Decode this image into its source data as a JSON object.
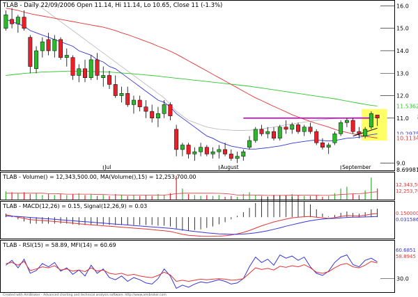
{
  "header": {
    "title": "TLAB - Daily 22/09/2006 Open 11.14, Hi 11.14, Lo 10.65, Close 11 (-1.3%)"
  },
  "colors": {
    "up": "#2db82d",
    "down": "#e8202a",
    "ma_fast": "#3434d8",
    "ma_mid": "#e33434",
    "ma_slow": "#2fc62f",
    "ma_grey": "#bdbdbd",
    "resistance": "#cc00cc",
    "highlight": "#ffff66",
    "axis_label_bg": "#ffffff"
  },
  "chart_data": [
    {
      "type": "candlestick",
      "name": "price",
      "ylim": [
        8.7,
        16.2
      ],
      "y_ticks": [
        "16.0",
        "15.0",
        "14.0",
        "13.0",
        "12.0",
        "11.0",
        "9.0"
      ],
      "x_labels": [
        "Jul",
        "August",
        "September"
      ],
      "x_label_index": [
        16,
        35,
        55
      ],
      "price_labels": [
        {
          "value": 11.5362,
          "text": "11.5362",
          "color": "#2fc62f"
        },
        {
          "value": 11.0397,
          "text": "11.0397",
          "color": "#9a9a9a"
        },
        {
          "value": 11.0,
          "text": "11.0",
          "color": "#000000"
        },
        {
          "value": 10.2975,
          "text": "10.2975",
          "color": "#3434d8"
        },
        {
          "value": 10.1134,
          "text": "10.1134",
          "color": "#e33434"
        },
        {
          "value": 8.69981,
          "text": "8.69981",
          "color": "#000000"
        }
      ],
      "candles": [
        {
          "o": 15.0,
          "h": 15.8,
          "l": 14.9,
          "c": 15.6
        },
        {
          "o": 15.4,
          "h": 15.9,
          "l": 15.0,
          "c": 15.2
        },
        {
          "o": 15.2,
          "h": 15.6,
          "l": 14.8,
          "c": 15.5
        },
        {
          "o": 15.5,
          "h": 15.8,
          "l": 14.9,
          "c": 15.0
        },
        {
          "o": 14.6,
          "h": 14.7,
          "l": 13.0,
          "c": 13.3
        },
        {
          "o": 13.2,
          "h": 14.2,
          "l": 13.0,
          "c": 14.0
        },
        {
          "o": 14.0,
          "h": 14.6,
          "l": 13.7,
          "c": 14.4
        },
        {
          "o": 14.5,
          "h": 14.8,
          "l": 13.8,
          "c": 14.0
        },
        {
          "o": 14.0,
          "h": 14.7,
          "l": 13.7,
          "c": 14.5
        },
        {
          "o": 14.5,
          "h": 14.6,
          "l": 13.6,
          "c": 13.7
        },
        {
          "o": 13.7,
          "h": 14.1,
          "l": 13.3,
          "c": 13.8
        },
        {
          "o": 13.7,
          "h": 13.8,
          "l": 12.7,
          "c": 12.9
        },
        {
          "o": 12.9,
          "h": 13.4,
          "l": 12.6,
          "c": 13.2
        },
        {
          "o": 13.2,
          "h": 13.6,
          "l": 12.6,
          "c": 12.8
        },
        {
          "o": 12.8,
          "h": 13.8,
          "l": 12.7,
          "c": 13.6
        },
        {
          "o": 13.6,
          "h": 13.9,
          "l": 12.7,
          "c": 12.9
        },
        {
          "o": 12.8,
          "h": 13.3,
          "l": 12.4,
          "c": 12.9
        },
        {
          "o": 12.9,
          "h": 13.1,
          "l": 12.3,
          "c": 12.5
        },
        {
          "o": 12.5,
          "h": 12.9,
          "l": 11.9,
          "c": 12.0
        },
        {
          "o": 12.0,
          "h": 12.4,
          "l": 11.7,
          "c": 12.1
        },
        {
          "o": 12.1,
          "h": 12.4,
          "l": 11.5,
          "c": 11.6
        },
        {
          "o": 11.6,
          "h": 12.0,
          "l": 11.2,
          "c": 11.8
        },
        {
          "o": 11.8,
          "h": 12.0,
          "l": 11.3,
          "c": 11.5
        },
        {
          "o": 11.5,
          "h": 11.8,
          "l": 11.0,
          "c": 11.3
        },
        {
          "o": 11.3,
          "h": 11.6,
          "l": 10.8,
          "c": 11.0
        },
        {
          "o": 11.0,
          "h": 11.5,
          "l": 10.6,
          "c": 11.2
        },
        {
          "o": 11.2,
          "h": 11.8,
          "l": 11.0,
          "c": 11.6
        },
        {
          "o": 11.6,
          "h": 11.7,
          "l": 10.9,
          "c": 11.1
        },
        {
          "o": 10.5,
          "h": 10.7,
          "l": 9.3,
          "c": 9.6
        },
        {
          "o": 9.6,
          "h": 9.9,
          "l": 9.3,
          "c": 9.8
        },
        {
          "o": 9.8,
          "h": 9.9,
          "l": 9.2,
          "c": 9.4
        },
        {
          "o": 9.4,
          "h": 9.7,
          "l": 9.1,
          "c": 9.5
        },
        {
          "o": 9.5,
          "h": 9.9,
          "l": 9.3,
          "c": 9.7
        },
        {
          "o": 9.7,
          "h": 9.8,
          "l": 9.3,
          "c": 9.4
        },
        {
          "o": 9.4,
          "h": 9.7,
          "l": 9.2,
          "c": 9.5
        },
        {
          "o": 9.5,
          "h": 9.8,
          "l": 9.2,
          "c": 9.6
        },
        {
          "o": 9.6,
          "h": 9.9,
          "l": 9.3,
          "c": 9.4
        },
        {
          "o": 9.4,
          "h": 9.6,
          "l": 9.1,
          "c": 9.2
        },
        {
          "o": 9.2,
          "h": 9.5,
          "l": 9.0,
          "c": 9.3
        },
        {
          "o": 9.3,
          "h": 9.6,
          "l": 9.1,
          "c": 9.5
        },
        {
          "o": 9.7,
          "h": 10.2,
          "l": 9.6,
          "c": 10.0
        },
        {
          "o": 10.0,
          "h": 10.6,
          "l": 9.9,
          "c": 10.5
        },
        {
          "o": 10.5,
          "h": 10.7,
          "l": 10.2,
          "c": 10.3
        },
        {
          "o": 10.3,
          "h": 10.6,
          "l": 10.1,
          "c": 10.4
        },
        {
          "o": 10.4,
          "h": 10.6,
          "l": 10.0,
          "c": 10.1
        },
        {
          "o": 10.1,
          "h": 10.7,
          "l": 10.0,
          "c": 10.6
        },
        {
          "o": 10.6,
          "h": 10.9,
          "l": 10.3,
          "c": 10.5
        },
        {
          "o": 10.5,
          "h": 10.8,
          "l": 10.3,
          "c": 10.7
        },
        {
          "o": 10.7,
          "h": 10.8,
          "l": 10.3,
          "c": 10.4
        },
        {
          "o": 10.4,
          "h": 10.7,
          "l": 10.2,
          "c": 10.6
        },
        {
          "o": 10.6,
          "h": 10.8,
          "l": 10.3,
          "c": 10.4
        },
        {
          "o": 10.4,
          "h": 10.5,
          "l": 9.8,
          "c": 9.9
        },
        {
          "o": 9.9,
          "h": 10.1,
          "l": 9.6,
          "c": 9.7
        },
        {
          "o": 9.7,
          "h": 9.9,
          "l": 9.4,
          "c": 9.8
        },
        {
          "o": 9.9,
          "h": 10.4,
          "l": 9.8,
          "c": 10.3
        },
        {
          "o": 10.3,
          "h": 10.9,
          "l": 10.2,
          "c": 10.8
        },
        {
          "o": 10.8,
          "h": 11.0,
          "l": 10.6,
          "c": 10.9
        },
        {
          "o": 10.9,
          "h": 11.0,
          "l": 10.3,
          "c": 10.4
        },
        {
          "o": 10.4,
          "h": 10.6,
          "l": 10.1,
          "c": 10.3
        },
        {
          "o": 10.2,
          "h": 10.6,
          "l": 10.1,
          "c": 10.5
        },
        {
          "o": 10.6,
          "h": 11.3,
          "l": 10.5,
          "c": 11.2
        },
        {
          "o": 11.14,
          "h": 11.14,
          "l": 10.65,
          "c": 11.0
        }
      ],
      "ma_fast": [
        15.4,
        15.3,
        15.2,
        15.1,
        14.9,
        14.8,
        14.7,
        14.6,
        14.5,
        14.4,
        14.3,
        14.2,
        14.0,
        13.9,
        13.8,
        13.6,
        13.5,
        13.3,
        13.2,
        13.0,
        12.8,
        12.6,
        12.4,
        12.2,
        12.0,
        11.8,
        11.7,
        11.5,
        11.2,
        11.0,
        10.8,
        10.6,
        10.4,
        10.2,
        10.1,
        9.95,
        9.85,
        9.75,
        9.7,
        9.65,
        9.62,
        9.62,
        9.65,
        9.68,
        9.72,
        9.76,
        9.82,
        9.88,
        9.92,
        9.96,
        10.0,
        10.02,
        10.0,
        9.98,
        10.0,
        10.05,
        10.1,
        10.12,
        10.15,
        10.2,
        10.26,
        10.3
      ],
      "ma_mid": [
        15.9,
        15.85,
        15.8,
        15.72,
        15.65,
        15.6,
        15.55,
        15.5,
        15.45,
        15.4,
        15.35,
        15.3,
        15.25,
        15.2,
        15.15,
        15.1,
        15.05,
        14.98,
        14.9,
        14.8,
        14.72,
        14.62,
        14.52,
        14.42,
        14.32,
        14.2,
        14.1,
        13.98,
        13.85,
        13.7,
        13.55,
        13.4,
        13.25,
        13.1,
        12.95,
        12.8,
        12.65,
        12.5,
        12.35,
        12.2,
        12.05,
        11.9,
        11.78,
        11.65,
        11.52,
        11.4,
        11.28,
        11.15,
        11.05,
        10.95,
        10.85,
        10.76,
        10.68,
        10.6,
        10.5,
        10.42,
        10.36,
        10.3,
        10.25,
        10.2,
        10.15,
        10.11
      ],
      "ma_slow": [
        12.9,
        12.93,
        12.96,
        12.99,
        13.01,
        13.03,
        13.05,
        13.06,
        13.07,
        13.08,
        13.09,
        13.09,
        13.09,
        13.09,
        13.08,
        13.07,
        13.06,
        13.05,
        13.03,
        13.01,
        12.99,
        12.97,
        12.95,
        12.92,
        12.9,
        12.87,
        12.84,
        12.81,
        12.78,
        12.75,
        12.72,
        12.69,
        12.66,
        12.63,
        12.6,
        12.57,
        12.54,
        12.51,
        12.48,
        12.45,
        12.42,
        12.38,
        12.34,
        12.3,
        12.26,
        12.22,
        12.18,
        12.14,
        12.1,
        12.06,
        12.02,
        11.98,
        11.94,
        11.9,
        11.86,
        11.81,
        11.76,
        11.71,
        11.66,
        11.61,
        11.57,
        11.54
      ],
      "ma_grey": [
        16.2,
        16.2,
        16.2,
        16.2,
        16.2,
        16.1,
        15.9,
        15.7,
        15.5,
        15.3,
        15.1,
        14.9,
        14.7,
        14.5,
        14.3,
        14.1,
        13.9,
        13.7,
        13.5,
        13.3,
        13.1,
        12.9,
        12.7,
        12.5,
        12.3,
        12.1,
        11.9,
        11.6,
        11.3,
        11.1,
        10.9,
        10.8,
        10.7,
        10.6,
        10.55,
        10.5,
        10.48,
        10.46,
        10.45,
        10.45,
        10.46,
        10.48,
        10.52,
        10.56,
        10.6,
        10.65,
        10.7,
        10.74,
        10.78,
        10.82,
        10.86,
        10.9,
        10.93,
        10.96,
        10.98,
        11.0,
        11.01,
        11.02,
        11.03,
        11.03,
        11.04,
        11.04
      ],
      "resistance": {
        "from_index": 39,
        "to_index": 60,
        "value": 11.0
      },
      "highlight_box": {
        "from_index": 59,
        "to_index": 62,
        "low": 10.0,
        "high": 11.4
      },
      "trend_line": {
        "from_index": 57,
        "to_index": 61,
        "from_value": 10.2,
        "to_value": 10.55
      }
    },
    {
      "type": "bar",
      "name": "volume",
      "title": "TLAB - Volume() = 12,343,500.00, MA(Volume(),15) = 12,253,700.00",
      "right_labels": [
        {
          "text": "12,343,500",
          "color": "#e33434"
        },
        {
          "text": "12,253,700",
          "color": "#e33434"
        }
      ],
      "values": [
        9,
        8,
        7,
        8,
        6,
        7,
        5,
        6,
        5,
        6,
        5,
        6,
        7,
        5,
        6,
        4,
        5,
        4,
        6,
        5,
        4,
        5,
        4,
        5,
        4,
        6,
        5,
        7,
        26,
        12,
        6,
        5,
        4,
        5,
        4,
        5,
        3,
        4,
        3,
        6,
        8,
        5,
        4,
        3,
        5,
        4,
        5,
        6,
        5,
        4,
        4,
        5,
        3,
        4,
        7,
        12,
        14,
        6,
        5,
        10,
        24,
        12
      ],
      "ma": [
        7,
        7,
        7,
        7,
        7,
        7,
        7,
        6.5,
        6.5,
        6.3,
        6,
        6,
        6,
        6,
        6,
        5.5,
        5.5,
        5.3,
        5.2,
        5.1,
        5,
        5,
        5,
        5,
        5,
        5,
        5,
        5.5,
        6.5,
        7,
        7,
        7,
        7,
        7,
        7,
        6.8,
        6.6,
        6,
        5,
        5,
        5,
        5,
        4.8,
        4.6,
        4.6,
        4.6,
        4.7,
        4.8,
        4.8,
        4.8,
        4.8,
        4.8,
        4.6,
        4.6,
        5,
        5.5,
        6,
        6.3,
        6.5,
        7,
        8,
        8.5
      ],
      "ylim": [
        0,
        28
      ]
    },
    {
      "type": "line",
      "name": "macd",
      "title": "TLAB - MACD(12,26) = 0.15, Signal(12,26,9) = 0.03",
      "right_labels": [
        {
          "text": "0.150000",
          "color": "#e33434"
        },
        {
          "text": "0.031586",
          "color": "#3434d8"
        }
      ],
      "macd": [
        0.1,
        0.05,
        0.0,
        -0.05,
        -0.1,
        -0.12,
        -0.14,
        -0.16,
        -0.18,
        -0.2,
        -0.22,
        -0.25,
        -0.28,
        -0.3,
        -0.32,
        -0.34,
        -0.36,
        -0.38,
        -0.4,
        -0.42,
        -0.44,
        -0.46,
        -0.48,
        -0.5,
        -0.52,
        -0.55,
        -0.57,
        -0.6,
        -0.66,
        -0.72,
        -0.76,
        -0.78,
        -0.8,
        -0.81,
        -0.81,
        -0.8,
        -0.78,
        -0.75,
        -0.7,
        -0.64,
        -0.56,
        -0.46,
        -0.36,
        -0.28,
        -0.2,
        -0.14,
        -0.08,
        -0.03,
        0.0,
        0.02,
        0.03,
        0.0,
        -0.03,
        -0.05,
        -0.02,
        0.03,
        0.07,
        0.06,
        0.05,
        0.08,
        0.13,
        0.15
      ],
      "signal": [
        0.05,
        0.04,
        0.03,
        0.01,
        -0.01,
        -0.03,
        -0.05,
        -0.07,
        -0.09,
        -0.11,
        -0.13,
        -0.15,
        -0.17,
        -0.19,
        -0.21,
        -0.23,
        -0.25,
        -0.27,
        -0.29,
        -0.31,
        -0.33,
        -0.35,
        -0.37,
        -0.39,
        -0.41,
        -0.43,
        -0.45,
        -0.47,
        -0.5,
        -0.53,
        -0.57,
        -0.6,
        -0.63,
        -0.66,
        -0.68,
        -0.7,
        -0.71,
        -0.72,
        -0.72,
        -0.71,
        -0.69,
        -0.66,
        -0.62,
        -0.57,
        -0.51,
        -0.45,
        -0.38,
        -0.32,
        -0.26,
        -0.2,
        -0.15,
        -0.11,
        -0.08,
        -0.06,
        -0.05,
        -0.03,
        -0.01,
        0.0,
        0.0,
        0.01,
        0.02,
        0.03
      ],
      "ylim": [
        -0.9,
        0.3
      ]
    },
    {
      "type": "line",
      "name": "rsi_mfi",
      "title": "TLAB - RSI(15) = 58.89, MFI(14) = 60.69",
      "y_ticks": [
        "30.0"
      ],
      "right_labels": [
        {
          "text": "60.6851",
          "color": "#3434d8"
        },
        {
          "text": "58.8945",
          "color": "#e33434"
        }
      ],
      "rsi": [
        58,
        60,
        55,
        62,
        45,
        48,
        52,
        50,
        54,
        46,
        48,
        44,
        46,
        43,
        50,
        44,
        46,
        40,
        38,
        40,
        36,
        38,
        35,
        33,
        32,
        36,
        42,
        37,
        25,
        27,
        25,
        27,
        29,
        28,
        29,
        30,
        29,
        27,
        28,
        30,
        40,
        50,
        47,
        49,
        46,
        53,
        51,
        54,
        52,
        56,
        50,
        42,
        40,
        43,
        50,
        56,
        58,
        52,
        50,
        55,
        62,
        59
      ],
      "mfi": [
        55,
        64,
        50,
        66,
        40,
        45,
        58,
        52,
        60,
        44,
        50,
        38,
        46,
        35,
        55,
        40,
        48,
        32,
        28,
        35,
        25,
        32,
        28,
        22,
        20,
        30,
        48,
        35,
        12,
        18,
        14,
        20,
        24,
        22,
        25,
        28,
        25,
        20,
        22,
        30,
        52,
        70,
        60,
        66,
        55,
        74,
        68,
        72,
        64,
        70,
        52,
        40,
        36,
        44,
        60,
        70,
        74,
        56,
        52,
        64,
        68,
        61
      ],
      "ylim": [
        5,
        85
      ]
    }
  ],
  "footer": {
    "text": "Created with AmiBroker - Advanced charting and technical analysis software. http://www.amibroker.com"
  }
}
